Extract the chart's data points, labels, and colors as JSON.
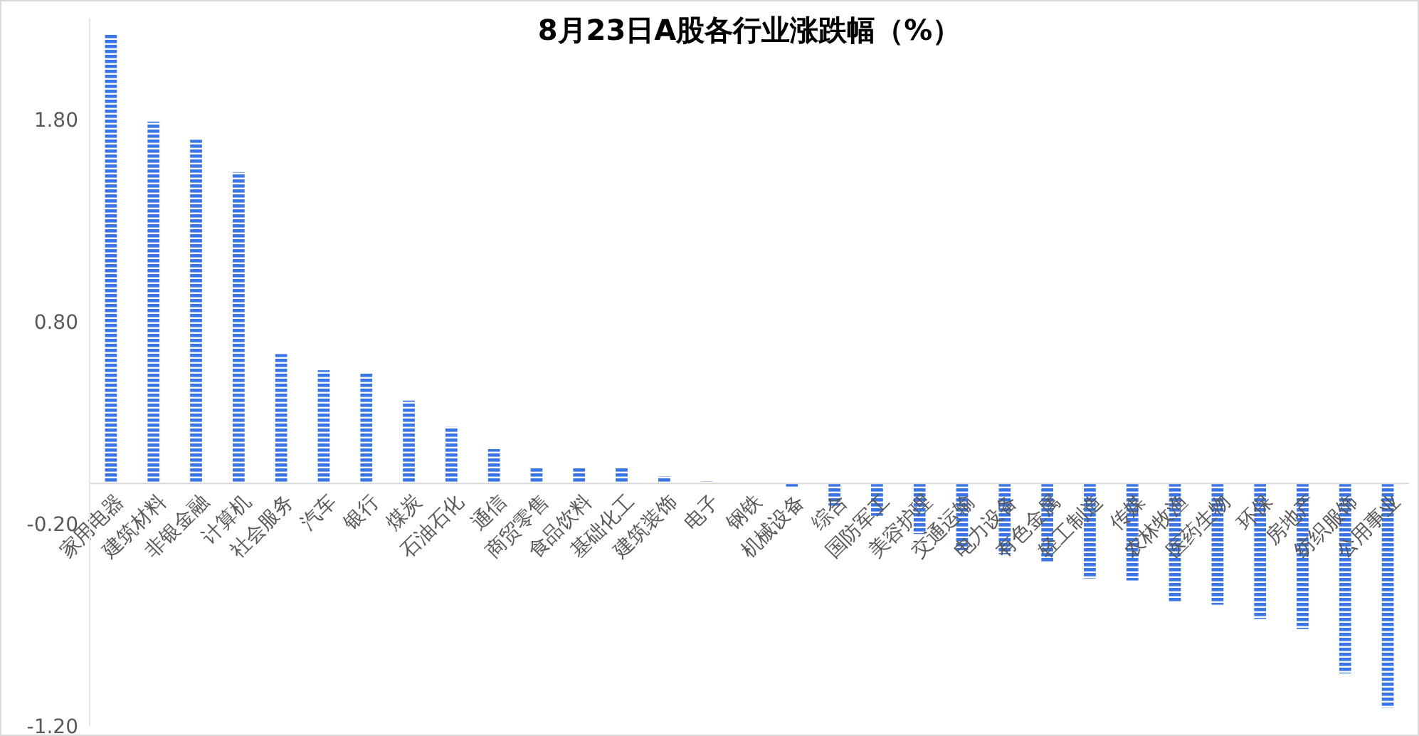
{
  "chart_data": {
    "type": "bar",
    "title": "8月23日A股各行业涨跌幅（%）",
    "categories": [
      "家用电器",
      "建筑材料",
      "非银金融",
      "计算机",
      "社会服务",
      "汽车",
      "银行",
      "煤炭",
      "石油石化",
      "通信",
      "商贸零售",
      "食品饮料",
      "基础化工",
      "建筑装饰",
      "电子",
      "钢铁",
      "机械设备",
      "综合",
      "国防军工",
      "美容护理",
      "交通运输",
      "电力设备",
      "有色金属",
      "轻工制造",
      "传媒",
      "农林牧渔",
      "医药生物",
      "环保",
      "房地产",
      "纺织服饰",
      "公用事业"
    ],
    "values": [
      2.22,
      1.79,
      1.7,
      1.54,
      0.64,
      0.56,
      0.55,
      0.41,
      0.28,
      0.17,
      0.08,
      0.08,
      0.08,
      0.035,
      0.01,
      0,
      -0.02,
      -0.11,
      -0.16,
      -0.25,
      -0.33,
      -0.35,
      -0.39,
      -0.47,
      -0.48,
      -0.59,
      -0.6,
      -0.67,
      -0.72,
      -0.94,
      -1.11
    ],
    "color": "#3a75e6",
    "ylim": [
      -1.2,
      2.3
    ],
    "yticks": [
      {
        "value": -1.2,
        "label": "-1.20"
      },
      {
        "value": -0.2,
        "label": "-0.20"
      },
      {
        "value": 0.8,
        "label": "0.80"
      },
      {
        "value": 1.8,
        "label": "1.80"
      }
    ],
    "grid": false
  }
}
